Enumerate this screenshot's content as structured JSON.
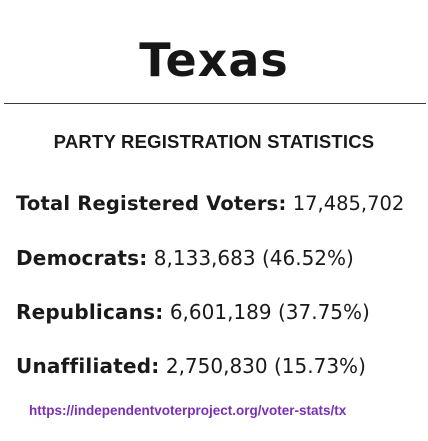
{
  "header": {
    "title": "Texas",
    "subtitle": "PARTY REGISTRATION STATISTICS"
  },
  "stats": {
    "total": {
      "label": "Total Registered Voters:",
      "value": "17,485,702"
    },
    "democrats": {
      "label": "Democrats:",
      "value": "8,133,683",
      "percent": "(46.52%)"
    },
    "republicans": {
      "label": "Republicans:",
      "value": "6,601,189",
      "percent": "(37.75%)"
    },
    "unaffiliated": {
      "label": "Unaffiliated:",
      "value": "2,750,830",
      "percent": "(15.73%)"
    }
  },
  "footer": {
    "link_text": "https://independentvoterproject.org/voter-stats/tx",
    "link_color": "#7a2fb4"
  }
}
